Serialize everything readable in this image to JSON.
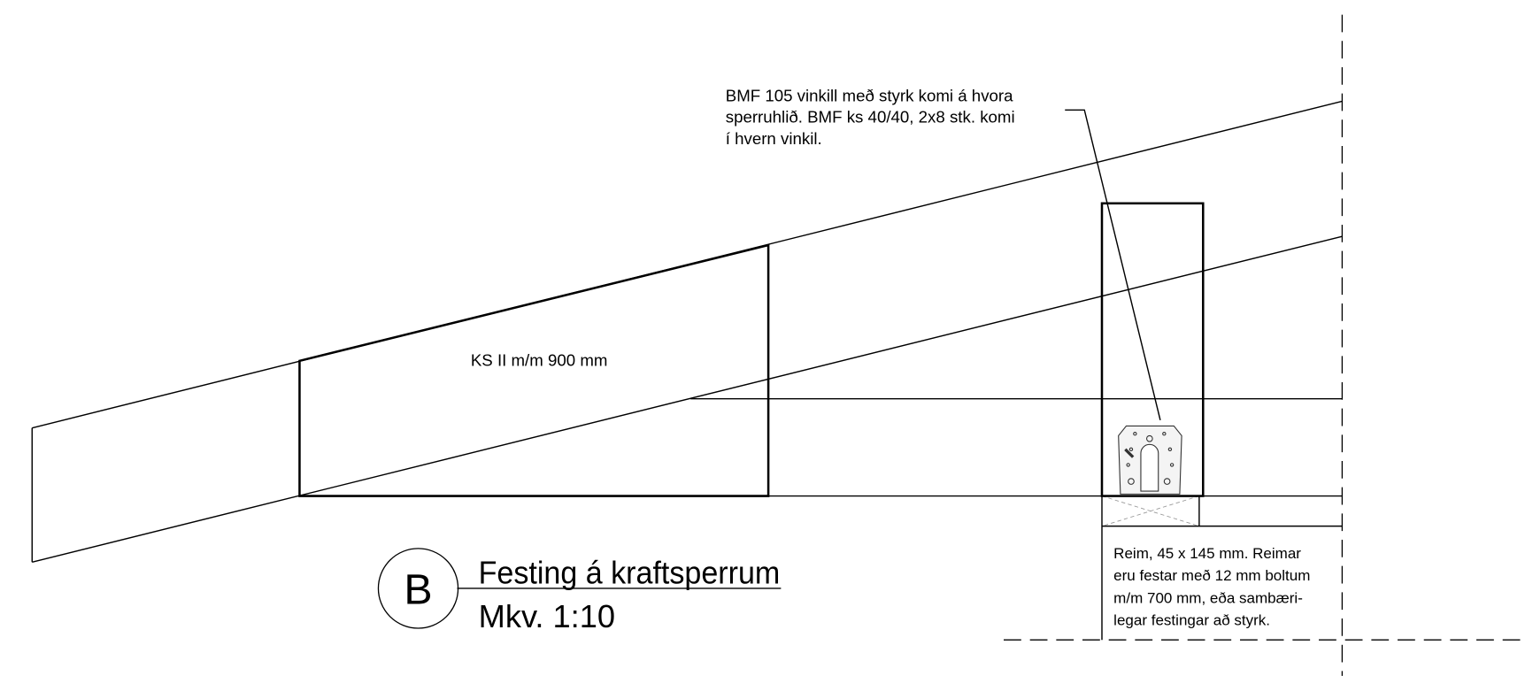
{
  "note": {
    "lines": [
      "BMF 105 vinkill með styrk komi á hvora",
      "sperruhlið. BMF ks 40/40, 2x8 stk. komi",
      "í hvern vinkil."
    ]
  },
  "label": "KS II m/m 900 mm",
  "reim": {
    "lines": [
      "Reim, 45 x 145 mm.  Reimar",
      "eru festar með 12 mm boltum",
      "m/m 700 mm,  eða sambæri-",
      "legar festingar að styrk."
    ]
  },
  "detail": {
    "marker": "B",
    "title": "Festing á kraftsperrum",
    "scale": "Mkv.  1:10"
  }
}
